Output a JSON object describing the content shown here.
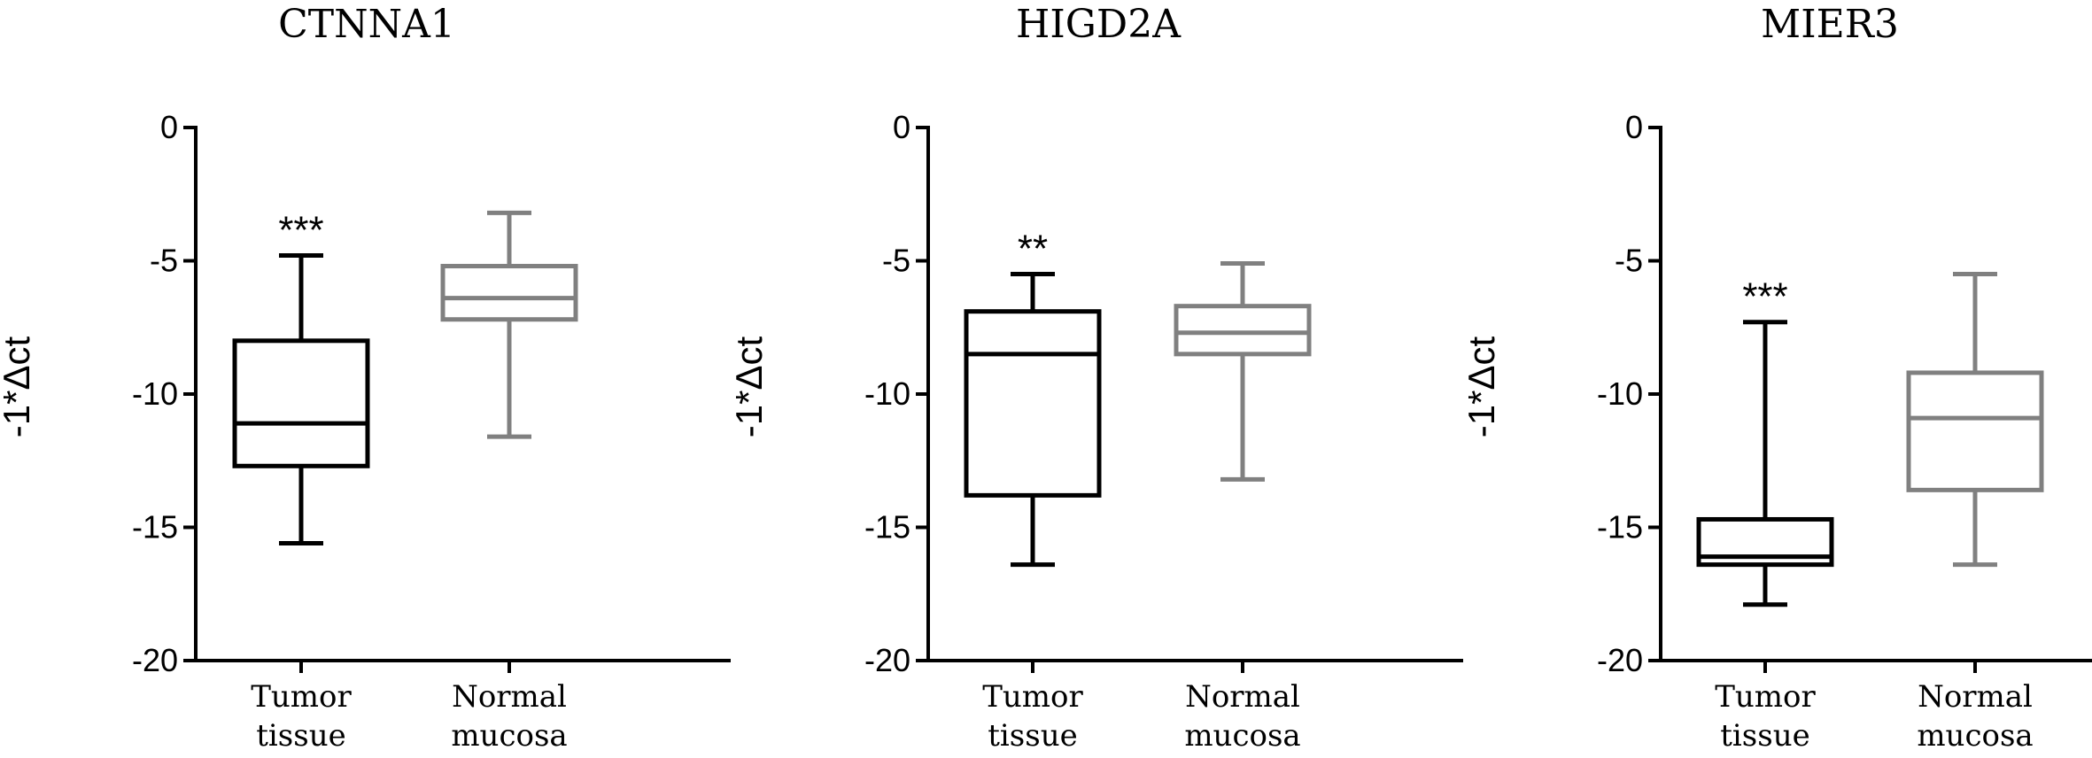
{
  "chart_data": [
    {
      "type": "box",
      "title": "CTNNA1",
      "ylabel": "-1*Δct",
      "ylim": [
        -20,
        0
      ],
      "yticks": [
        "0",
        "-5",
        "-10",
        "-15",
        "-20"
      ],
      "yticks_values": [
        0,
        -5,
        -10,
        -15,
        -20
      ],
      "categories": [
        [
          "Tumor",
          "tissue"
        ],
        [
          "Normal",
          "mucosa"
        ]
      ],
      "colors": [
        "#000000",
        "#808080"
      ],
      "boxes": [
        {
          "category": "Tumor tissue",
          "min": -15.6,
          "q1": -12.7,
          "median": -11.1,
          "q3": -8.0,
          "max": -4.8,
          "significance": "***"
        },
        {
          "category": "Normal mucosa",
          "min": -11.6,
          "q1": -7.2,
          "median": -6.4,
          "q3": -5.2,
          "max": -3.2,
          "significance": ""
        }
      ]
    },
    {
      "type": "box",
      "title": "HIGD2A",
      "ylabel": "-1*Δct",
      "ylim": [
        -20,
        0
      ],
      "yticks": [
        "0",
        "-5",
        "-10",
        "-15",
        "-20"
      ],
      "yticks_values": [
        0,
        -5,
        -10,
        -15,
        -20
      ],
      "categories": [
        [
          "Tumor",
          "tissue"
        ],
        [
          "Normal",
          "mucosa"
        ]
      ],
      "colors": [
        "#000000",
        "#808080"
      ],
      "boxes": [
        {
          "category": "Tumor tissue",
          "min": -16.4,
          "q1": -13.8,
          "median": -8.5,
          "q3": -6.9,
          "max": -5.5,
          "significance": "**"
        },
        {
          "category": "Normal mucosa",
          "min": -13.2,
          "q1": -8.5,
          "median": -7.7,
          "q3": -6.7,
          "max": -5.1,
          "significance": ""
        }
      ]
    },
    {
      "type": "box",
      "title": "MIER3",
      "ylabel": "-1*Δct",
      "ylim": [
        -20,
        0
      ],
      "yticks": [
        "0",
        "-5",
        "-10",
        "-15",
        "-20"
      ],
      "yticks_values": [
        0,
        -5,
        -10,
        -15,
        -20
      ],
      "categories": [
        [
          "Tumor",
          "tissue"
        ],
        [
          "Normal",
          "mucosa"
        ]
      ],
      "colors": [
        "#000000",
        "#808080"
      ],
      "boxes": [
        {
          "category": "Tumor tissue",
          "min": -17.9,
          "q1": -16.4,
          "median": -16.1,
          "q3": -14.7,
          "max": -7.3,
          "significance": "***"
        },
        {
          "category": "Normal mucosa",
          "min": -16.4,
          "q1": -13.6,
          "median": -10.9,
          "q3": -9.2,
          "max": -5.5,
          "significance": ""
        }
      ]
    }
  ]
}
